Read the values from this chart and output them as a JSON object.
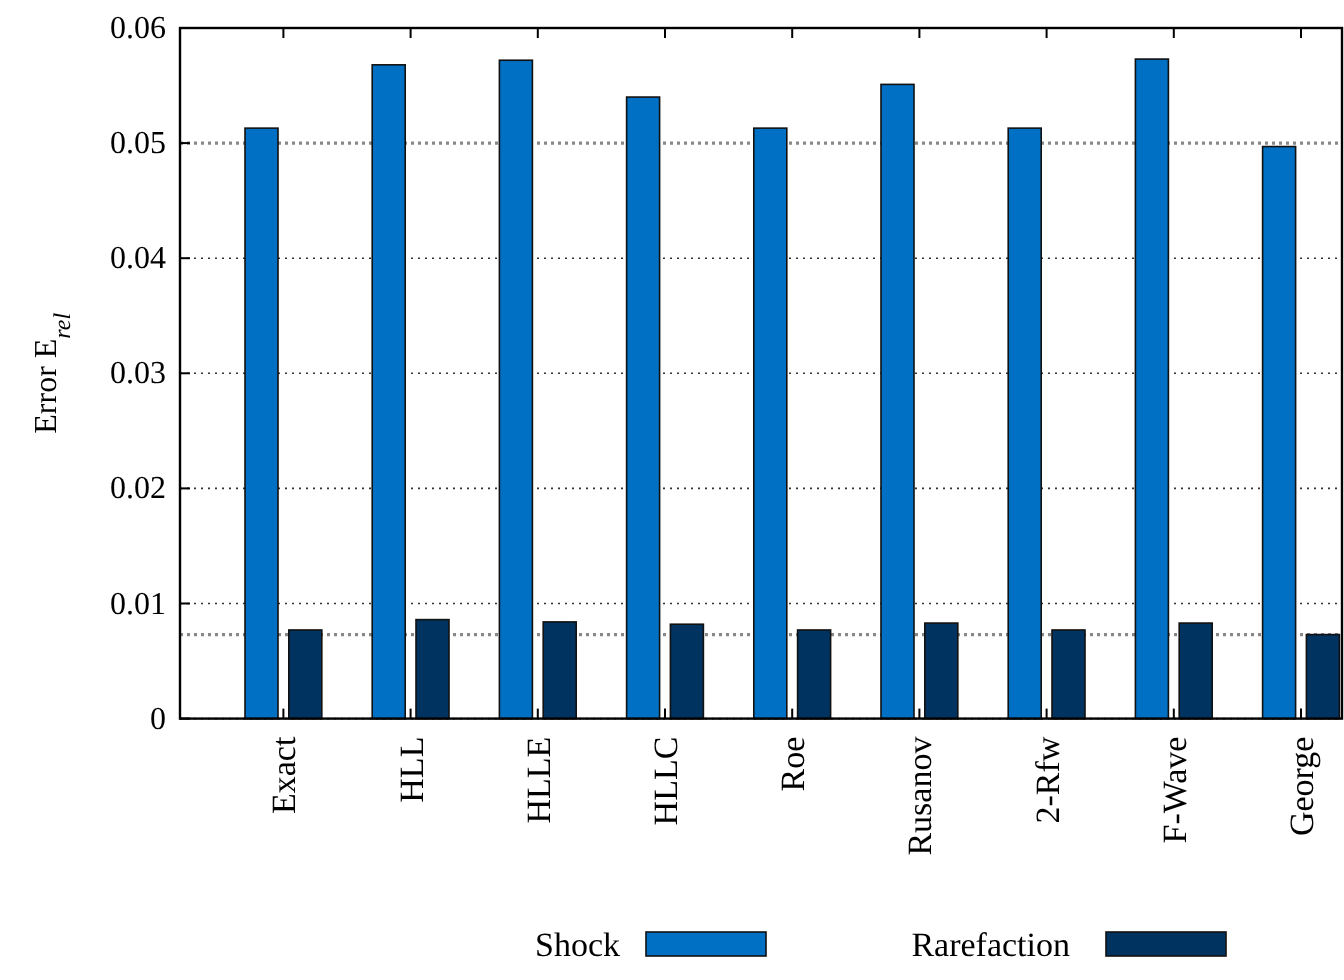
{
  "chart_data": {
    "type": "bar",
    "ylabel": "Error E$_{rel}$",
    "categories": [
      "Exact",
      "HLL",
      "HLLE",
      "HLLC",
      "Roe",
      "Rusanov",
      "2-Rfw",
      "F-Wave",
      "George"
    ],
    "series": [
      {
        "name": "Shock",
        "color": "#0070c4",
        "values": [
          0.0513,
          0.0568,
          0.0572,
          0.054,
          0.0513,
          0.0551,
          0.0513,
          0.0573,
          0.0497
        ]
      },
      {
        "name": "Rarefaction",
        "color": "#003360",
        "values": [
          0.0077,
          0.0086,
          0.0084,
          0.0082,
          0.0077,
          0.0083,
          0.0077,
          0.0083,
          0.0073
        ]
      }
    ],
    "ylim": [
      0,
      0.06
    ],
    "yticks": [
      0,
      0.01,
      0.02,
      0.03,
      0.04,
      0.05,
      0.06
    ],
    "grid": "y",
    "ref_lines": [
      {
        "axis": "y",
        "value": 0.05,
        "color": "#888888",
        "line_style": "dotted"
      },
      {
        "axis": "y",
        "value": 0.0073,
        "color": "#888888",
        "line_style": "dotted"
      }
    ],
    "legend": "bottom"
  }
}
